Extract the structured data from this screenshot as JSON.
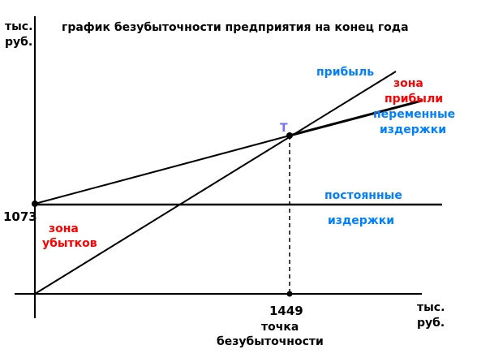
{
  "chart_data": {
    "type": "line",
    "title": "график безубыточности предприятия на конец года",
    "y_unit": [
      "тыс.",
      "руб."
    ],
    "x_unit": [
      "тыс.",
      "руб."
    ],
    "fixed_cost_value": "1073",
    "break_even_value": "1449",
    "break_even_label": [
      "точка",
      "безубыточности"
    ],
    "point_label": "T",
    "series": [
      {
        "name": "прибыль",
        "color": "#0080ff"
      },
      {
        "name": "переменные издержки",
        "color": "#0080ff"
      },
      {
        "name": "постоянные издержки",
        "color": "#0080ff"
      }
    ],
    "series_labels": {
      "profit": "прибыль",
      "variable_costs": [
        "переменные",
        "издержки"
      ],
      "fixed_costs": [
        "постоянные",
        "издержки"
      ]
    },
    "zones": {
      "profit_zone": [
        "зона",
        "прибыли"
      ],
      "loss_zone": [
        "зона",
        "убытков"
      ]
    },
    "colors": {
      "zone_text": "#ff0000",
      "series_text": "#0080ff",
      "point_label": "#7070ff",
      "lines": "#000000"
    }
  }
}
